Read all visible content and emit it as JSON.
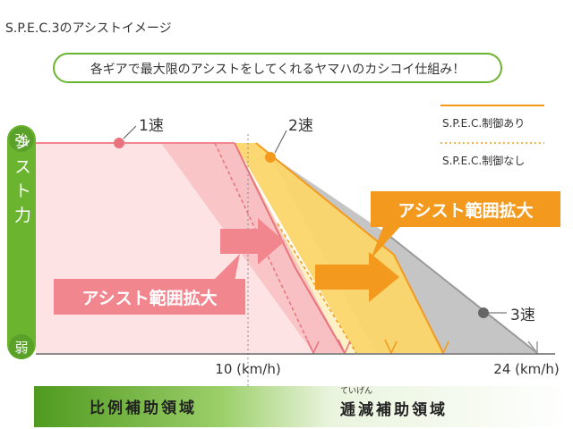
{
  "title": "S.P.E.C.3のアシストイメージ",
  "subtitle": "各ギアで最大限のアシストをしてくれるヤマハのカシコイ仕組み！",
  "y_axis": {
    "label": "アシスト力",
    "top": "強",
    "bottom": "弱"
  },
  "gears": {
    "first": "1速",
    "second": "2速",
    "third": "3速"
  },
  "legend": {
    "with_spec": "S.P.E.C.制御あり",
    "without_spec": "S.P.E.C.制御なし"
  },
  "callouts": {
    "left": "アシスト範囲拡大",
    "right": "アシスト範囲拡大"
  },
  "x_ticks": {
    "speed_10": "10 (km/h)",
    "speed_24": "24 (km/h)"
  },
  "bands": {
    "proportional": "比例補助領域",
    "reduction": "逓減補助領域",
    "reduction_ruby": "ていげん"
  },
  "colors": {
    "green": "#6ab42f",
    "first_gear": "#f2868e",
    "second_gear": "#fcd66a",
    "third_gear": "#bfbfbf",
    "orange": "#f39a1e"
  }
}
